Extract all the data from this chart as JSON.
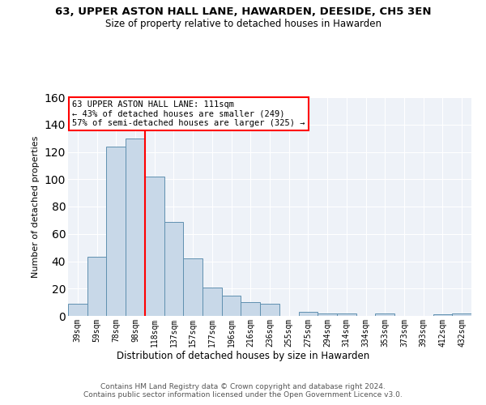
{
  "title": "63, UPPER ASTON HALL LANE, HAWARDEN, DEESIDE, CH5 3EN",
  "subtitle": "Size of property relative to detached houses in Hawarden",
  "xlabel": "Distribution of detached houses by size in Hawarden",
  "ylabel": "Number of detached properties",
  "categories": [
    "39sqm",
    "59sqm",
    "78sqm",
    "98sqm",
    "118sqm",
    "137sqm",
    "157sqm",
    "177sqm",
    "196sqm",
    "216sqm",
    "236sqm",
    "255sqm",
    "275sqm",
    "294sqm",
    "314sqm",
    "334sqm",
    "353sqm",
    "373sqm",
    "393sqm",
    "412sqm",
    "432sqm"
  ],
  "values": [
    9,
    43,
    124,
    130,
    102,
    69,
    42,
    21,
    15,
    10,
    9,
    0,
    3,
    2,
    2,
    0,
    2,
    0,
    0,
    1,
    2
  ],
  "bar_color": "#c8d8e8",
  "bar_edge_color": "#6090b0",
  "red_line_x": 3.5,
  "annotation_text": "63 UPPER ASTON HALL LANE: 111sqm\n← 43% of detached houses are smaller (249)\n57% of semi-detached houses are larger (325) →",
  "annotation_box_color": "white",
  "annotation_box_edge_color": "red",
  "ylim": [
    0,
    160
  ],
  "yticks": [
    0,
    20,
    40,
    60,
    80,
    100,
    120,
    140,
    160
  ],
  "background_color": "#eef2f8",
  "grid_color": "white",
  "footer": "Contains HM Land Registry data © Crown copyright and database right 2024.\nContains public sector information licensed under the Open Government Licence v3.0."
}
